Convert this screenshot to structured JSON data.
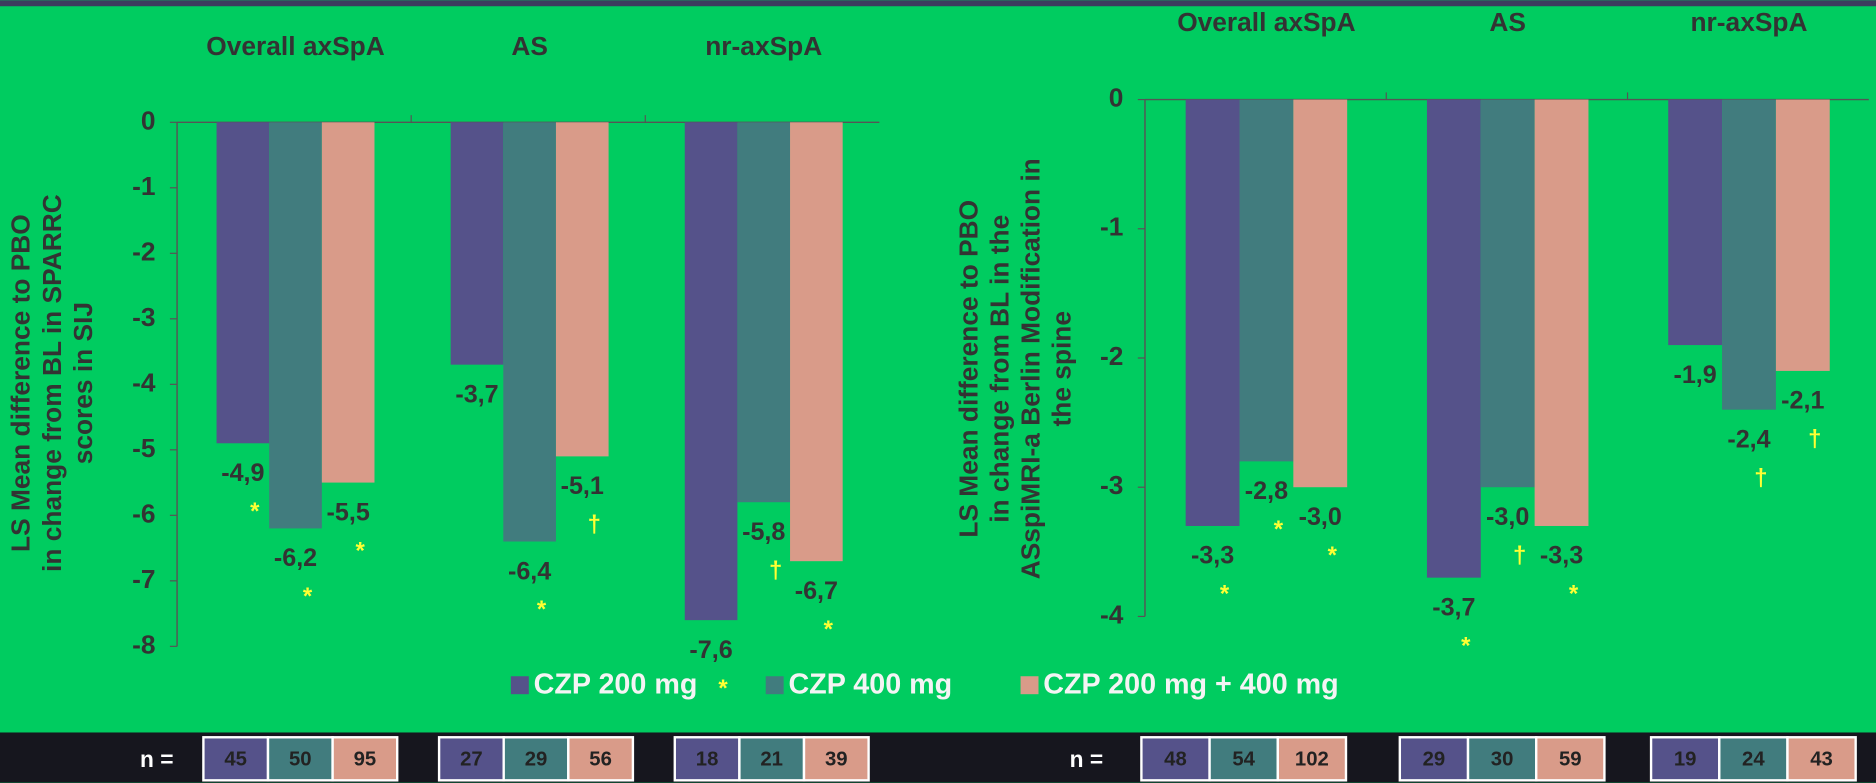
{
  "chart_data": [
    {
      "type": "bar",
      "categories": [
        "Overall axSpA",
        "AS",
        "nr-axSpA"
      ],
      "ylabel": [
        "LS Mean difference to PBO",
        "in change from BL in SPARRC",
        "scores in SIJ"
      ],
      "ylim": [
        -8,
        0
      ],
      "yticks": [
        0,
        -1,
        -2,
        -3,
        -4,
        -5,
        -6,
        -7,
        -8
      ],
      "series": [
        {
          "name": "CZP 200 mg",
          "color": "#55528a",
          "values": [
            -4.9,
            -3.7,
            -7.6
          ],
          "value_labels": [
            "-4,9",
            "-3,7",
            "-7,6"
          ],
          "markers": [
            "*",
            null,
            "*"
          ]
        },
        {
          "name": "CZP 400 mg",
          "color": "#417c7e",
          "values": [
            -6.2,
            -6.4,
            -5.8
          ],
          "value_labels": [
            "-6,2",
            "-6,4",
            "-5,8"
          ],
          "markers": [
            "*",
            "*",
            "†"
          ]
        },
        {
          "name": "CZP 200 mg + 400 mg",
          "color": "#d99b89",
          "values": [
            -5.5,
            -5.1,
            -6.7
          ],
          "value_labels": [
            "-5,5",
            "-5,1",
            "-6,7"
          ],
          "markers": [
            "*",
            "†",
            "*"
          ]
        }
      ],
      "n_label": "n  =",
      "n": [
        [
          45,
          50,
          95
        ],
        [
          27,
          29,
          56
        ],
        [
          18,
          21,
          39
        ]
      ]
    },
    {
      "type": "bar",
      "categories": [
        "Overall axSpA",
        "AS",
        "nr-axSpA"
      ],
      "ylabel": [
        "LS Mean difference to PBO",
        "in change from BL in the",
        "ASspiMRI-a Berlin Modification in",
        "the spine"
      ],
      "ylim": [
        -4,
        0
      ],
      "yticks": [
        0,
        -1,
        -2,
        -3,
        -4
      ],
      "series": [
        {
          "color": "#55528a",
          "values": [
            -3.3,
            -3.7,
            -1.9
          ],
          "value_labels": [
            "-3,3",
            "-3,7",
            "-1,9"
          ],
          "markers": [
            "*",
            "*",
            null
          ]
        },
        {
          "color": "#417c7e",
          "values": [
            -2.8,
            -3.0,
            -2.4
          ],
          "value_labels": [
            "-2,8",
            "-3,0",
            "-2,4"
          ],
          "markers": [
            "*",
            "†",
            "†"
          ]
        },
        {
          "color": "#d99b89",
          "values": [
            -3.0,
            -3.3,
            -2.1
          ],
          "value_labels": [
            "-3,0",
            "-3,3",
            "-2,1"
          ],
          "markers": [
            "*",
            "*",
            "†"
          ]
        }
      ],
      "n_label": "n =",
      "n": [
        [
          48,
          54,
          102
        ],
        [
          29,
          30,
          59
        ],
        [
          19,
          24,
          43
        ]
      ]
    }
  ]
}
